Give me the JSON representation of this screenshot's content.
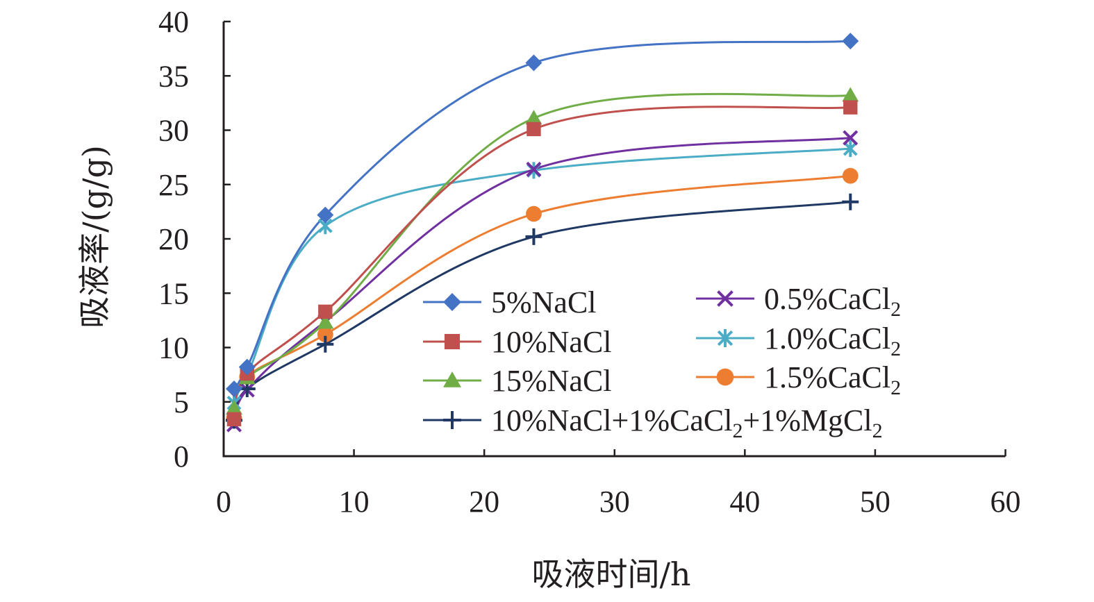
{
  "chart_data": {
    "type": "line",
    "xlabel": "吸液时间/h",
    "ylabel": "吸液率/(g/g)",
    "xlim": [
      0,
      60
    ],
    "ylim": [
      0,
      40
    ],
    "x_ticks": [
      "0",
      "10",
      "20",
      "30",
      "40",
      "50",
      "60"
    ],
    "y_ticks": [
      "0",
      "5",
      "10",
      "15",
      "20",
      "25",
      "30",
      "35",
      "40"
    ],
    "grid": false,
    "legend_position": "bottom-right",
    "x": [
      0.8,
      1.8,
      7.8,
      23.8,
      48.1
    ],
    "series": [
      {
        "name": "5%NaCl",
        "label_main": "5%NaCl",
        "marker": "diamond",
        "color": "#4472c4",
        "values": [
          6.2,
          8.2,
          22.2,
          36.2,
          38.2
        ]
      },
      {
        "name": "10%NaCl",
        "label_main": "10%NaCl",
        "marker": "square",
        "color": "#c0504d",
        "values": [
          3.4,
          7.6,
          13.3,
          30.1,
          32.1
        ]
      },
      {
        "name": "15%NaCl",
        "label_main": "15%NaCl",
        "marker": "triangle",
        "color": "#70ad47",
        "values": [
          4.4,
          7.2,
          12.3,
          31.1,
          33.2
        ]
      },
      {
        "name": "10%NaCl+1%CaCl2+1%MgCl2",
        "label_main": "10%NaCl+1%CaCl",
        "label_sub1": "2",
        "label_mid": "+1%MgCl",
        "label_sub2": "2",
        "marker": "plus",
        "color": "#1f3864",
        "values": [
          3.3,
          6.2,
          10.3,
          20.2,
          23.4
        ]
      },
      {
        "name": "0.5%CaCl2",
        "label_main": "0.5%CaCl",
        "label_sub1": "2",
        "marker": "x",
        "color": "#7030a0",
        "values": [
          2.9,
          6.1,
          12.4,
          26.4,
          29.3
        ]
      },
      {
        "name": "1.0%CaCl2",
        "label_main": "1.0%CaCl",
        "label_sub1": "2",
        "marker": "asterisk",
        "color": "#4bacc6",
        "values": [
          4.9,
          7.5,
          21.2,
          26.3,
          28.3
        ]
      },
      {
        "name": "1.5%CaCl2",
        "label_main": "1.5%CaCl",
        "label_sub1": "2",
        "marker": "circle",
        "color": "#ed7d31",
        "values": [
          3.5,
          7.3,
          11.2,
          22.3,
          25.8
        ]
      }
    ]
  }
}
